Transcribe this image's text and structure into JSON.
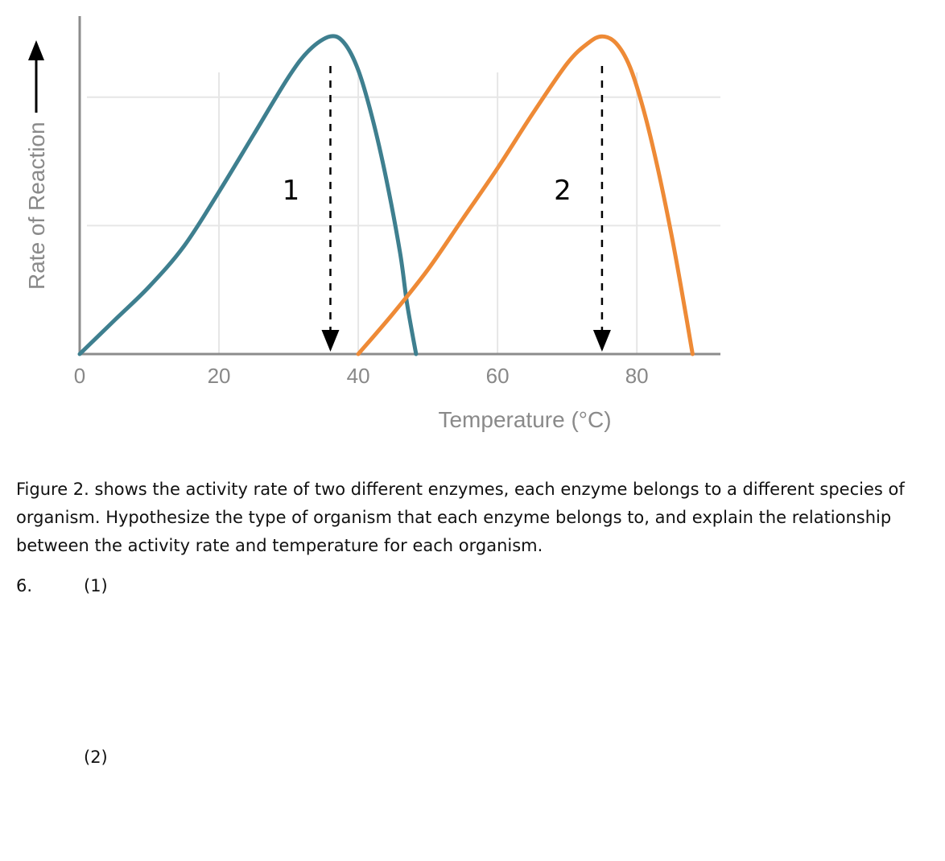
{
  "chart_data": {
    "type": "line",
    "xlabel": "Temperature (°C)",
    "ylabel": "Rate of Reaction",
    "xlim": [
      0,
      92
    ],
    "ylim": [
      0,
      1
    ],
    "x_ticks": [
      "0",
      "20",
      "40",
      "60",
      "80"
    ],
    "x_tick_values": [
      0,
      20,
      40,
      60,
      80
    ],
    "grid": true,
    "legend": "none",
    "series": [
      {
        "label": "1",
        "color": "#3e7f8f",
        "peak_x": 36,
        "x": [
          0,
          5,
          10,
          15,
          20,
          25,
          30,
          33,
          36,
          38,
          40,
          42,
          44,
          46,
          47,
          48.3
        ],
        "values": [
          0,
          0.1,
          0.2,
          0.32,
          0.48,
          0.65,
          0.82,
          0.9,
          0.94,
          0.92,
          0.84,
          0.7,
          0.52,
          0.3,
          0.15,
          0
        ]
      },
      {
        "label": "2",
        "color": "#ee8a36",
        "peak_x": 75,
        "x": [
          40,
          45,
          50,
          55,
          60,
          65,
          70,
          73,
          75,
          77,
          79,
          81,
          83,
          85,
          86.5,
          88
        ],
        "values": [
          0,
          0.12,
          0.25,
          0.4,
          0.55,
          0.71,
          0.86,
          0.92,
          0.94,
          0.92,
          0.85,
          0.72,
          0.55,
          0.35,
          0.18,
          0
        ]
      }
    ]
  },
  "question": {
    "text": "Figure 2. shows the activity rate of two different enzymes, each enzyme belongs to a different species of organism. Hypothesize the type of organism that each enzyme belongs to, and explain the relationship between the activity rate and temperature for each organism.",
    "number": "6.",
    "part1": "(1)",
    "part2": "(2)"
  }
}
